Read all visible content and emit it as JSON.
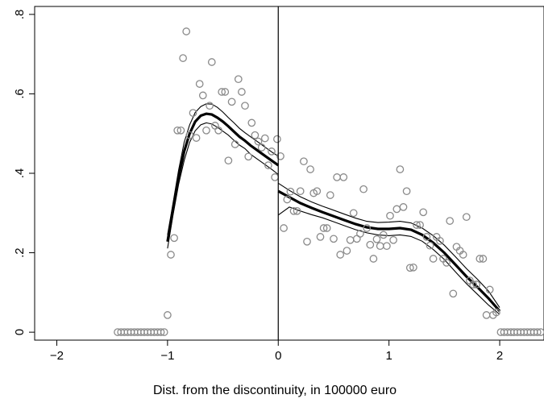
{
  "chart_data": {
    "type": "scatter",
    "title": "",
    "xlabel": "Dist. from the discontinuity, in 100000 euro",
    "ylabel": "",
    "xlim": [
      -2.2,
      2.4
    ],
    "ylim": [
      -0.02,
      0.82
    ],
    "xticks": [
      -2,
      -1,
      0,
      1,
      2
    ],
    "xtick_labels": [
      "−2",
      "−1",
      "0",
      "1",
      "2"
    ],
    "yticks": [
      0,
      0.2,
      0.4,
      0.6,
      0.8
    ],
    "ytick_labels": [
      "0",
      ".2",
      ".4",
      ".6",
      ".8"
    ],
    "ytick_label_rotation": "vertical",
    "grid": false,
    "legend": "none",
    "vertical_line_at": 0,
    "point_style": {
      "marker": "hollow-circle",
      "color": "#8a8a8a"
    },
    "scatter_points": [
      {
        "x": -1.45,
        "y": 0.0
      },
      {
        "x": -1.42,
        "y": 0.0
      },
      {
        "x": -1.39,
        "y": 0.0
      },
      {
        "x": -1.36,
        "y": 0.0
      },
      {
        "x": -1.33,
        "y": 0.0
      },
      {
        "x": -1.3,
        "y": 0.0
      },
      {
        "x": -1.27,
        "y": 0.0
      },
      {
        "x": -1.24,
        "y": 0.0
      },
      {
        "x": -1.21,
        "y": 0.0
      },
      {
        "x": -1.18,
        "y": 0.0
      },
      {
        "x": -1.15,
        "y": 0.0
      },
      {
        "x": -1.12,
        "y": 0.0
      },
      {
        "x": -1.09,
        "y": 0.0
      },
      {
        "x": -1.06,
        "y": 0.0
      },
      {
        "x": -1.03,
        "y": 0.0
      },
      {
        "x": -1.0,
        "y": 0.043
      },
      {
        "x": -0.97,
        "y": 0.195
      },
      {
        "x": -0.94,
        "y": 0.237
      },
      {
        "x": -0.91,
        "y": 0.508
      },
      {
        "x": -0.88,
        "y": 0.508
      },
      {
        "x": -0.86,
        "y": 0.69
      },
      {
        "x": -0.83,
        "y": 0.757
      },
      {
        "x": -0.8,
        "y": 0.496
      },
      {
        "x": -0.77,
        "y": 0.552
      },
      {
        "x": -0.74,
        "y": 0.489
      },
      {
        "x": -0.71,
        "y": 0.625
      },
      {
        "x": -0.68,
        "y": 0.596
      },
      {
        "x": -0.65,
        "y": 0.508
      },
      {
        "x": -0.62,
        "y": 0.57
      },
      {
        "x": -0.6,
        "y": 0.68
      },
      {
        "x": -0.57,
        "y": 0.52
      },
      {
        "x": -0.54,
        "y": 0.508
      },
      {
        "x": -0.51,
        "y": 0.605
      },
      {
        "x": -0.48,
        "y": 0.605
      },
      {
        "x": -0.45,
        "y": 0.432
      },
      {
        "x": -0.42,
        "y": 0.58
      },
      {
        "x": -0.39,
        "y": 0.473
      },
      {
        "x": -0.36,
        "y": 0.637
      },
      {
        "x": -0.33,
        "y": 0.605
      },
      {
        "x": -0.3,
        "y": 0.57
      },
      {
        "x": -0.27,
        "y": 0.442
      },
      {
        "x": -0.24,
        "y": 0.527
      },
      {
        "x": -0.21,
        "y": 0.496
      },
      {
        "x": -0.18,
        "y": 0.48
      },
      {
        "x": -0.15,
        "y": 0.465
      },
      {
        "x": -0.12,
        "y": 0.488
      },
      {
        "x": -0.09,
        "y": 0.42
      },
      {
        "x": -0.06,
        "y": 0.455
      },
      {
        "x": -0.03,
        "y": 0.39
      },
      {
        "x": -0.01,
        "y": 0.486
      },
      {
        "x": 0.02,
        "y": 0.443
      },
      {
        "x": 0.05,
        "y": 0.262
      },
      {
        "x": 0.08,
        "y": 0.334
      },
      {
        "x": 0.11,
        "y": 0.354
      },
      {
        "x": 0.14,
        "y": 0.305
      },
      {
        "x": 0.17,
        "y": 0.305
      },
      {
        "x": 0.2,
        "y": 0.355
      },
      {
        "x": 0.23,
        "y": 0.43
      },
      {
        "x": 0.26,
        "y": 0.228
      },
      {
        "x": 0.29,
        "y": 0.41
      },
      {
        "x": 0.32,
        "y": 0.35
      },
      {
        "x": 0.35,
        "y": 0.355
      },
      {
        "x": 0.38,
        "y": 0.24
      },
      {
        "x": 0.41,
        "y": 0.262
      },
      {
        "x": 0.44,
        "y": 0.262
      },
      {
        "x": 0.47,
        "y": 0.345
      },
      {
        "x": 0.5,
        "y": 0.235
      },
      {
        "x": 0.53,
        "y": 0.39
      },
      {
        "x": 0.56,
        "y": 0.195
      },
      {
        "x": 0.59,
        "y": 0.39
      },
      {
        "x": 0.62,
        "y": 0.205
      },
      {
        "x": 0.65,
        "y": 0.232
      },
      {
        "x": 0.68,
        "y": 0.3
      },
      {
        "x": 0.71,
        "y": 0.235
      },
      {
        "x": 0.74,
        "y": 0.248
      },
      {
        "x": 0.77,
        "y": 0.36
      },
      {
        "x": 0.8,
        "y": 0.262
      },
      {
        "x": 0.83,
        "y": 0.22
      },
      {
        "x": 0.86,
        "y": 0.185
      },
      {
        "x": 0.89,
        "y": 0.234
      },
      {
        "x": 0.92,
        "y": 0.217
      },
      {
        "x": 0.95,
        "y": 0.245
      },
      {
        "x": 0.98,
        "y": 0.217
      },
      {
        "x": 1.01,
        "y": 0.293
      },
      {
        "x": 1.04,
        "y": 0.232
      },
      {
        "x": 1.07,
        "y": 0.31
      },
      {
        "x": 1.1,
        "y": 0.41
      },
      {
        "x": 1.13,
        "y": 0.315
      },
      {
        "x": 1.16,
        "y": 0.355
      },
      {
        "x": 1.19,
        "y": 0.162
      },
      {
        "x": 1.22,
        "y": 0.163
      },
      {
        "x": 1.25,
        "y": 0.27
      },
      {
        "x": 1.28,
        "y": 0.27
      },
      {
        "x": 1.31,
        "y": 0.302
      },
      {
        "x": 1.34,
        "y": 0.24
      },
      {
        "x": 1.37,
        "y": 0.218
      },
      {
        "x": 1.4,
        "y": 0.185
      },
      {
        "x": 1.43,
        "y": 0.24
      },
      {
        "x": 1.46,
        "y": 0.23
      },
      {
        "x": 1.49,
        "y": 0.185
      },
      {
        "x": 1.52,
        "y": 0.175
      },
      {
        "x": 1.55,
        "y": 0.28
      },
      {
        "x": 1.58,
        "y": 0.097
      },
      {
        "x": 1.61,
        "y": 0.215
      },
      {
        "x": 1.64,
        "y": 0.205
      },
      {
        "x": 1.67,
        "y": 0.195
      },
      {
        "x": 1.7,
        "y": 0.29
      },
      {
        "x": 1.73,
        "y": 0.13
      },
      {
        "x": 1.76,
        "y": 0.12
      },
      {
        "x": 1.79,
        "y": 0.12
      },
      {
        "x": 1.82,
        "y": 0.185
      },
      {
        "x": 1.85,
        "y": 0.185
      },
      {
        "x": 1.88,
        "y": 0.043
      },
      {
        "x": 1.91,
        "y": 0.107
      },
      {
        "x": 1.94,
        "y": 0.043
      },
      {
        "x": 1.97,
        "y": 0.05
      },
      {
        "x": 2.01,
        "y": 0.0
      },
      {
        "x": 2.04,
        "y": 0.0
      },
      {
        "x": 2.07,
        "y": 0.0
      },
      {
        "x": 2.1,
        "y": 0.0
      },
      {
        "x": 2.13,
        "y": 0.0
      },
      {
        "x": 2.16,
        "y": 0.0
      },
      {
        "x": 2.19,
        "y": 0.0
      },
      {
        "x": 2.22,
        "y": 0.0
      },
      {
        "x": 2.25,
        "y": 0.0
      },
      {
        "x": 2.28,
        "y": 0.0
      },
      {
        "x": 2.31,
        "y": 0.0
      },
      {
        "x": 2.34,
        "y": 0.0
      },
      {
        "x": 2.37,
        "y": 0.0
      }
    ],
    "fit_segments": [
      {
        "side": "left",
        "x": [
          -1.0,
          -0.95,
          -0.9,
          -0.85,
          -0.8,
          -0.75,
          -0.7,
          -0.65,
          -0.6,
          -0.55,
          -0.5,
          -0.45,
          -0.4,
          -0.35,
          -0.3,
          -0.25,
          -0.2,
          -0.15,
          -0.1,
          -0.05,
          0.0
        ],
        "y": [
          0.228,
          0.31,
          0.39,
          0.455,
          0.5,
          0.53,
          0.545,
          0.55,
          0.548,
          0.54,
          0.53,
          0.518,
          0.505,
          0.492,
          0.482,
          0.47,
          0.46,
          0.45,
          0.44,
          0.43,
          0.42
        ],
        "upper": [
          0.245,
          0.325,
          0.408,
          0.478,
          0.522,
          0.553,
          0.568,
          0.575,
          0.574,
          0.566,
          0.554,
          0.54,
          0.527,
          0.513,
          0.502,
          0.492,
          0.482,
          0.472,
          0.462,
          0.452,
          0.443
        ],
        "lower": [
          0.211,
          0.295,
          0.372,
          0.432,
          0.478,
          0.507,
          0.522,
          0.527,
          0.524,
          0.516,
          0.506,
          0.496,
          0.483,
          0.471,
          0.462,
          0.448,
          0.438,
          0.428,
          0.418,
          0.408,
          0.397
        ]
      },
      {
        "side": "right",
        "x": [
          0.0,
          0.1,
          0.2,
          0.3,
          0.4,
          0.5,
          0.6,
          0.7,
          0.8,
          0.9,
          1.0,
          1.1,
          1.2,
          1.3,
          1.4,
          1.5,
          1.6,
          1.7,
          1.8,
          1.9,
          2.0
        ],
        "y": [
          0.355,
          0.34,
          0.325,
          0.313,
          0.302,
          0.292,
          0.282,
          0.272,
          0.264,
          0.26,
          0.26,
          0.262,
          0.258,
          0.245,
          0.225,
          0.2,
          0.17,
          0.14,
          0.113,
          0.085,
          0.053
        ],
        "upper": [
          0.375,
          0.357,
          0.341,
          0.328,
          0.317,
          0.307,
          0.297,
          0.287,
          0.279,
          0.276,
          0.277,
          0.279,
          0.275,
          0.262,
          0.243,
          0.219,
          0.19,
          0.16,
          0.133,
          0.103,
          0.062
        ],
        "lower": [
          0.295,
          0.315,
          0.305,
          0.296,
          0.288,
          0.278,
          0.268,
          0.258,
          0.25,
          0.245,
          0.243,
          0.245,
          0.241,
          0.229,
          0.208,
          0.183,
          0.152,
          0.122,
          0.095,
          0.068,
          0.045
        ]
      }
    ]
  }
}
